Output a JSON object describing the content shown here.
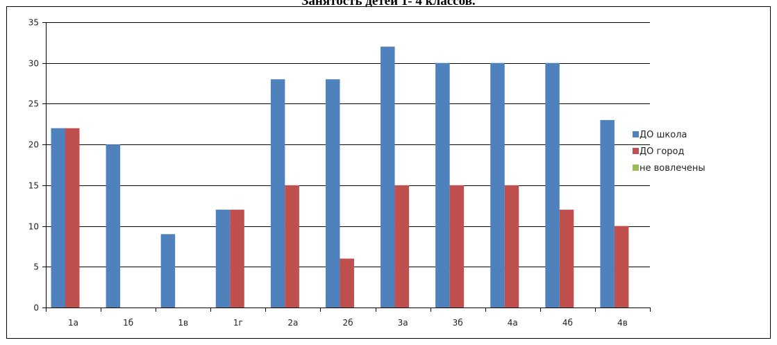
{
  "chart_data": {
    "type": "bar",
    "title": "Занятость детей 1- 4 классов.",
    "xlabel": "",
    "ylabel": "",
    "categories": [
      "1а",
      "1б",
      "1в",
      "1г",
      "2а",
      "2б",
      "3а",
      "3б",
      "4а",
      "4б",
      "4в"
    ],
    "series": [
      {
        "name": "ДО школа",
        "color": "#4F81BD",
        "values": [
          22,
          20,
          9,
          12,
          28,
          28,
          32,
          30,
          30,
          30,
          23
        ]
      },
      {
        "name": "ДО город",
        "color": "#C0504D",
        "values": [
          22,
          0,
          0,
          12,
          15,
          6,
          15,
          15,
          15,
          12,
          10
        ]
      },
      {
        "name": "не вовлечены",
        "color": "#9BBB59",
        "values": [
          0,
          0,
          0,
          0,
          0,
          0,
          0,
          0,
          0,
          0,
          0
        ]
      }
    ],
    "ylim": [
      0,
      35
    ],
    "yticks": [
      0,
      5,
      10,
      15,
      20,
      25,
      30,
      35
    ],
    "grid": true,
    "legend": "right"
  }
}
